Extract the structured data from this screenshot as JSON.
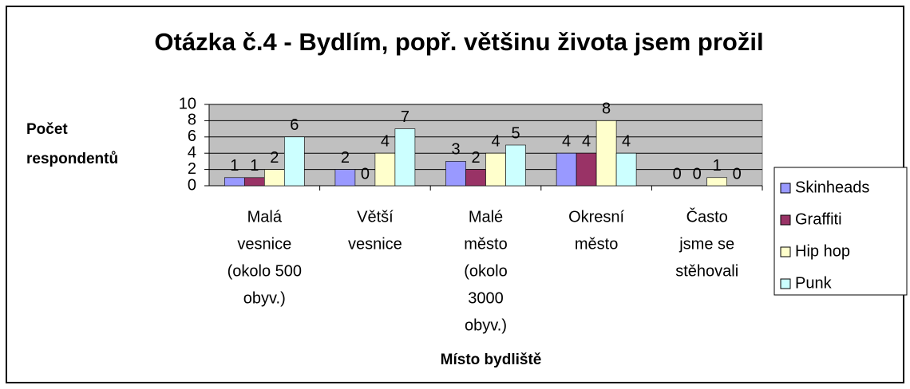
{
  "chart_data": {
    "type": "bar",
    "title": "Otázka č.4 - Bydlím, popř. většinu života jsem prožil",
    "y_label": [
      "Počet",
      "respondentů"
    ],
    "x_label": "Místo bydliště",
    "categories": [
      [
        "Malá",
        "vesnice",
        "(okolo 500",
        "obyv.)"
      ],
      [
        "Větší",
        "vesnice"
      ],
      [
        "Malé",
        "město",
        "(okolo",
        "3000",
        "obyv.)"
      ],
      [
        "Okresní",
        "město"
      ],
      [
        "Často",
        "jsme se",
        "stěhovali"
      ]
    ],
    "series": [
      {
        "name": "Skinheads",
        "color": "#9999ff",
        "values": [
          1,
          2,
          3,
          4,
          0
        ]
      },
      {
        "name": "Graffiti",
        "color": "#993366",
        "values": [
          1,
          0,
          2,
          4,
          0
        ]
      },
      {
        "name": "Hip hop",
        "color": "#ffffcc",
        "values": [
          2,
          4,
          4,
          8,
          1
        ]
      },
      {
        "name": "Punk",
        "color": "#ccffff",
        "values": [
          6,
          7,
          5,
          4,
          0
        ]
      }
    ],
    "ylim": [
      0,
      10
    ],
    "yticks": [
      0,
      2,
      4,
      6,
      8,
      10
    ],
    "grid": true,
    "plot_color": "#c0c0c0",
    "legend": "right"
  }
}
